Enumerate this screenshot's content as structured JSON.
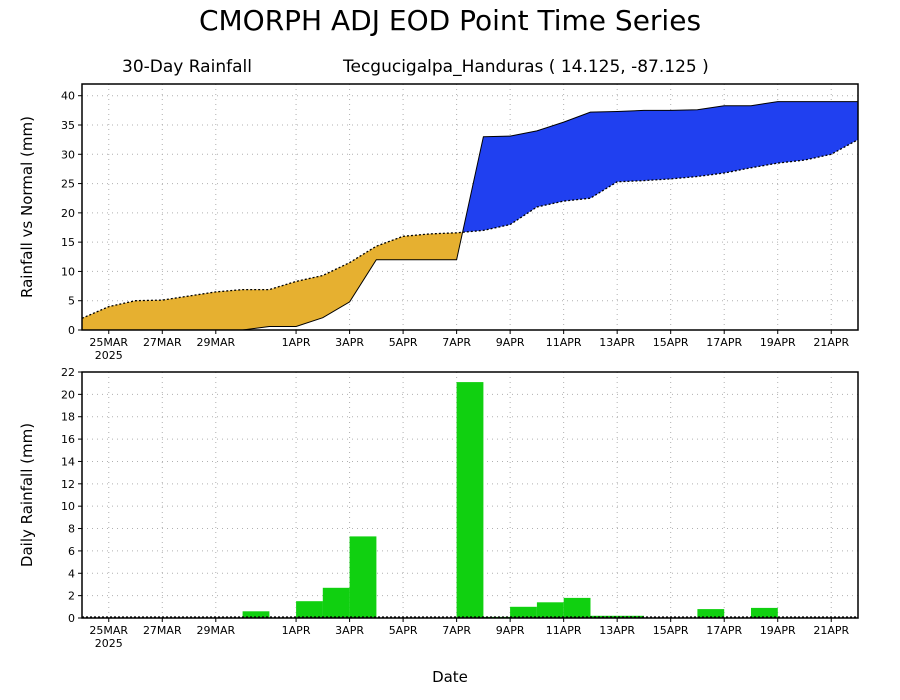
{
  "title": "CMORPH ADJ EOD Point Time Series",
  "subtitle_left": "30-Day Rainfall",
  "subtitle_right": "Tecgucigalpa_Handuras ( 14.125, -87.125 )",
  "xlabel": "Date",
  "year_label": "2025",
  "colors": {
    "deficit": "#e6b030",
    "surplus": "#2040f0",
    "daily": "#10d010"
  },
  "chart_data": [
    {
      "type": "area",
      "ylabel": "Rainfall vs Normal (mm)",
      "xlim": [
        "2025-03-24",
        "2025-04-22"
      ],
      "ylim": [
        0,
        42
      ],
      "yticks": [
        0,
        5,
        10,
        15,
        20,
        25,
        30,
        35,
        40
      ],
      "x_tick_labels": [
        "25MAR",
        "27MAR",
        "29MAR",
        "1APR",
        "3APR",
        "5APR",
        "7APR",
        "9APR",
        "11APR",
        "13APR",
        "15APR",
        "17APR",
        "19APR",
        "21APR"
      ],
      "x": [
        "2025-03-24",
        "2025-03-25",
        "2025-03-26",
        "2025-03-27",
        "2025-03-28",
        "2025-03-29",
        "2025-03-30",
        "2025-03-31",
        "2025-04-01",
        "2025-04-02",
        "2025-04-03",
        "2025-04-04",
        "2025-04-05",
        "2025-04-06",
        "2025-04-07",
        "2025-04-08",
        "2025-04-09",
        "2025-04-10",
        "2025-04-11",
        "2025-04-12",
        "2025-04-13",
        "2025-04-14",
        "2025-04-15",
        "2025-04-16",
        "2025-04-17",
        "2025-04-18",
        "2025-04-19",
        "2025-04-20",
        "2025-04-21",
        "2025-04-22"
      ],
      "series": [
        {
          "values": [
            2.0,
            4.0,
            5.0,
            5.1,
            5.8,
            6.5,
            6.9,
            6.9,
            8.3,
            9.3,
            11.5,
            14.3,
            16.0,
            16.4,
            16.6,
            17.0,
            18.0,
            21.0,
            22.0,
            22.5,
            25.3,
            25.5,
            25.8,
            26.2,
            26.8,
            27.7,
            28.5,
            29.0,
            30.0,
            32.5
          ]
        },
        {
          "values": [
            0.0,
            0.0,
            0.0,
            0.0,
            0.0,
            0.0,
            0.0,
            0.6,
            0.6,
            2.1,
            4.8,
            12.0,
            12.0,
            12.0,
            12.0,
            33.0,
            33.1,
            34.0,
            35.5,
            37.2,
            37.3,
            37.5,
            37.5,
            37.6,
            38.3,
            38.3,
            39.0,
            39.0,
            39.0,
            39.0
          ]
        }
      ]
    },
    {
      "type": "bar",
      "ylabel": "Daily Rainfall (mm)",
      "xlim": [
        "2025-03-24",
        "2025-04-22"
      ],
      "ylim": [
        0,
        22
      ],
      "yticks": [
        0,
        2,
        4,
        6,
        8,
        10,
        12,
        14,
        16,
        18,
        20,
        22
      ],
      "x_tick_labels": [
        "25MAR",
        "27MAR",
        "29MAR",
        "1APR",
        "3APR",
        "5APR",
        "7APR",
        "9APR",
        "11APR",
        "13APR",
        "15APR",
        "17APR",
        "19APR",
        "21APR"
      ],
      "x": [
        "2025-03-24",
        "2025-03-25",
        "2025-03-26",
        "2025-03-27",
        "2025-03-28",
        "2025-03-29",
        "2025-03-30",
        "2025-03-31",
        "2025-04-01",
        "2025-04-02",
        "2025-04-03",
        "2025-04-04",
        "2025-04-05",
        "2025-04-06",
        "2025-04-07",
        "2025-04-08",
        "2025-04-09",
        "2025-04-10",
        "2025-04-11",
        "2025-04-12",
        "2025-04-13",
        "2025-04-14",
        "2025-04-15",
        "2025-04-16",
        "2025-04-17",
        "2025-04-18",
        "2025-04-19",
        "2025-04-20",
        "2025-04-21",
        "2025-04-22"
      ],
      "values": [
        0,
        0,
        0,
        0,
        0,
        0,
        0,
        0.6,
        0,
        1.5,
        2.7,
        7.3,
        0,
        0,
        0,
        21.1,
        0.1,
        1.0,
        1.4,
        1.8,
        0.2,
        0.2,
        0,
        0,
        0.8,
        0,
        0.9,
        0,
        0,
        0
      ]
    }
  ]
}
